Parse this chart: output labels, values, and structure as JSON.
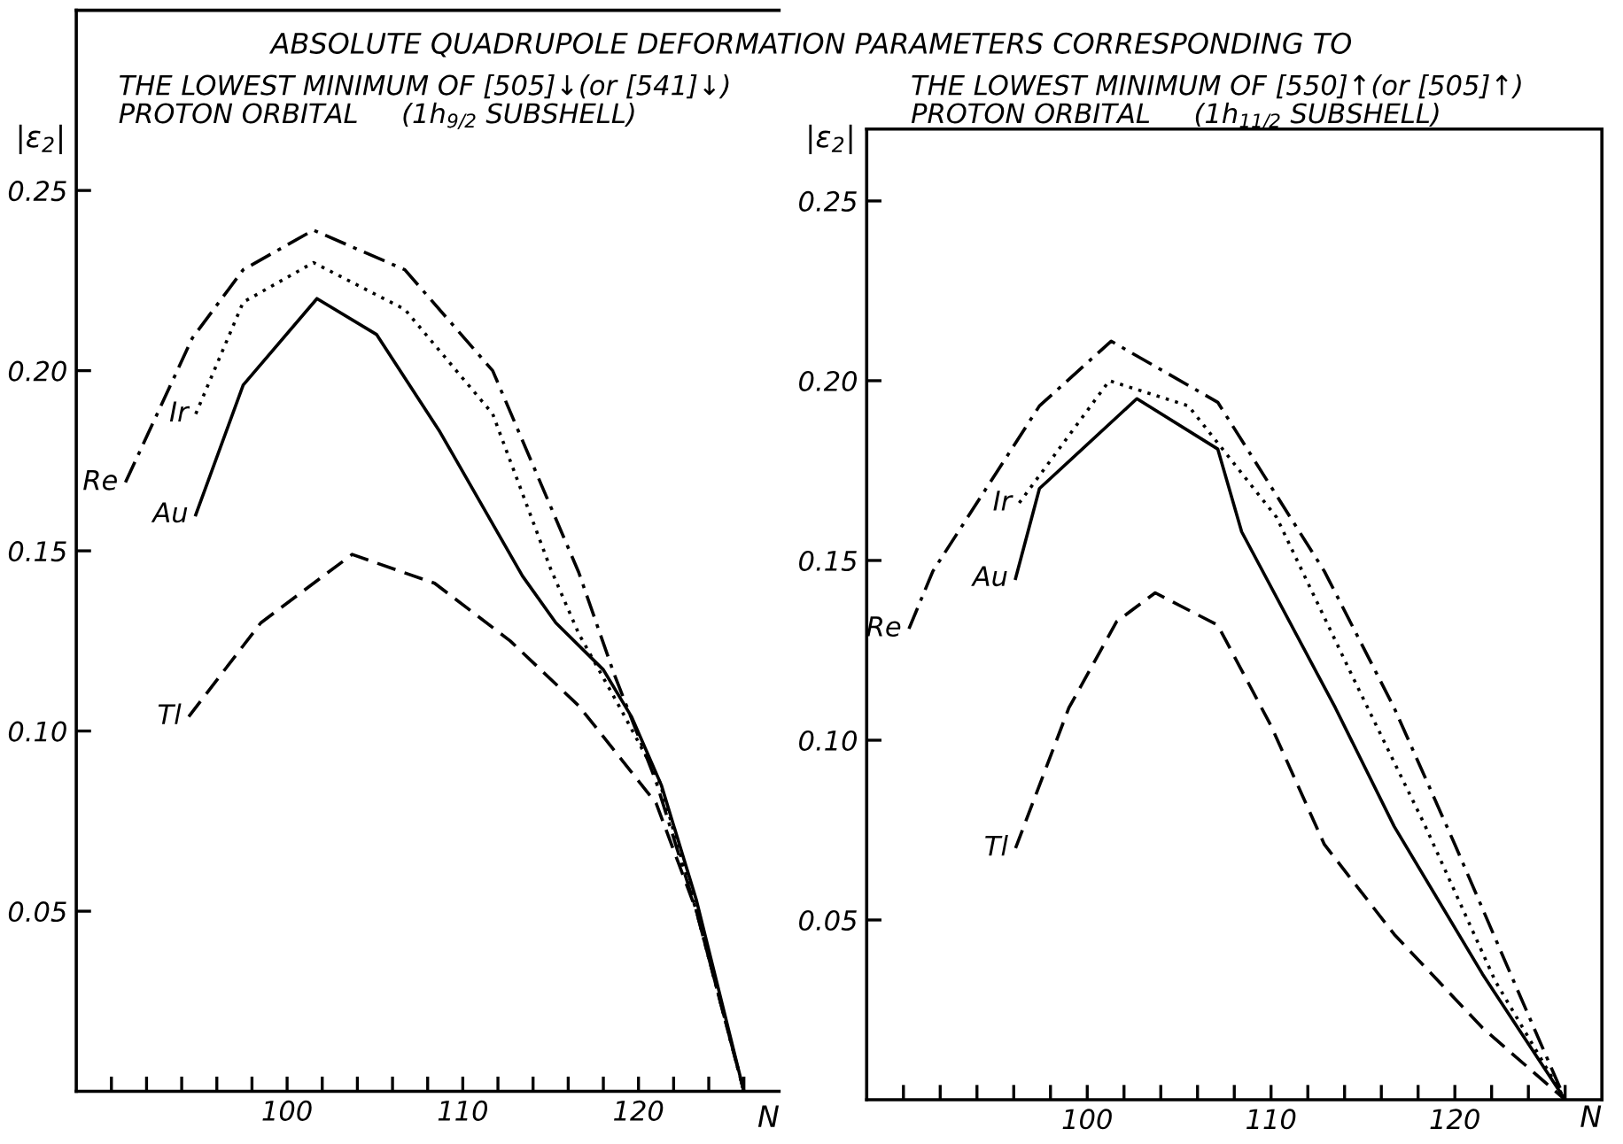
{
  "chart_data": [
    {
      "type": "line",
      "title": "ABSOLUTE QUADRUPOLE DEFORMATION PARAMETERS CORRESPONDING TO",
      "subtitle": "THE LOWEST MINIMUM OF [505]↓(or [541]↓)\nPROTON ORBITAL     (1h$_{9/2}$ SUBSHELL)",
      "xlabel": "N",
      "ylabel": "|ε$_{2}$|",
      "xlim": [
        88,
        128
      ],
      "ylim": [
        0,
        0.3
      ],
      "xticks": [
        {
          "value": 90,
          "label": null
        },
        {
          "value": 92,
          "label": null
        },
        {
          "value": 94,
          "label": null
        },
        {
          "value": 96,
          "label": null
        },
        {
          "value": 98,
          "label": null
        },
        100,
        {
          "value": 102,
          "label": null
        },
        {
          "value": 104,
          "label": null
        },
        {
          "value": 106,
          "label": null
        },
        {
          "value": 108,
          "label": null
        },
        110,
        {
          "value": 112,
          "label": null
        },
        {
          "value": 114,
          "label": null
        },
        {
          "value": 116,
          "label": null
        },
        {
          "value": 118,
          "label": null
        },
        120,
        {
          "value": 122,
          "label": null
        },
        {
          "value": 124,
          "label": null
        },
        {
          "value": 126,
          "label": null
        }
      ],
      "yticks": [
        {
          "value": 0.05,
          "label": "0.05"
        },
        {
          "value": 0.1,
          "label": "0.10"
        },
        {
          "value": 0.15,
          "label": "0.15"
        },
        {
          "value": 0.2,
          "label": "0.20"
        },
        {
          "value": 0.25,
          "label": "0.25"
        }
      ],
      "grid": false,
      "legend": false,
      "marker": "none",
      "series": [
        {
          "name": "Re",
          "color": "#000000",
          "line_style": "dashdot",
          "x": [
            90.8,
            94.6,
            97.5,
            101.5,
            106.7,
            111.7,
            116.6,
            118.6,
            121,
            123.3,
            126
          ],
          "values": [
            0.169,
            0.209,
            0.228,
            0.239,
            0.228,
            0.2,
            0.144,
            0.116,
            0.086,
            0.05,
            0.0
          ]
        },
        {
          "name": "Ir",
          "color": "#000000",
          "line_style": "dotted",
          "x": [
            94.8,
            97.5,
            101.5,
            106.7,
            111.7,
            115,
            116.6,
            119,
            121.2,
            123.3,
            126
          ],
          "values": [
            0.188,
            0.219,
            0.23,
            0.217,
            0.188,
            0.145,
            0.127,
            0.106,
            0.086,
            0.05,
            0.0
          ]
        },
        {
          "name": "Au",
          "color": "#000000",
          "line_style": "solid",
          "x": [
            94.8,
            97.5,
            101.7,
            105.1,
            108.7,
            113.4,
            115.3,
            118,
            119.6,
            121.3,
            123.3,
            126
          ],
          "values": [
            0.16,
            0.196,
            0.22,
            0.21,
            0.183,
            0.143,
            0.13,
            0.117,
            0.104,
            0.085,
            0.053,
            0.0
          ]
        },
        {
          "name": "Tl",
          "color": "#000000",
          "line_style": "dashed",
          "x": [
            94.4,
            98.5,
            103.7,
            108.4,
            112.7,
            116.6,
            121,
            123.3,
            126
          ],
          "values": [
            0.104,
            0.13,
            0.149,
            0.141,
            0.125,
            0.107,
            0.08,
            0.05,
            0.0
          ]
        }
      ]
    },
    {
      "type": "line",
      "subtitle": "THE LOWEST MINIMUM OF [550]↑(or [505]↑)\nPROTON ORBITAL     (1h$_{11/2}$ SUBSHELL)",
      "xlabel": "N",
      "ylabel": "|ε$_{2}$|",
      "xlim": [
        88,
        128
      ],
      "ylim": [
        0,
        0.27
      ],
      "xticks": [
        {
          "value": 90,
          "label": null
        },
        {
          "value": 92,
          "label": null
        },
        {
          "value": 94,
          "label": null
        },
        {
          "value": 96,
          "label": null
        },
        {
          "value": 98,
          "label": null
        },
        100,
        {
          "value": 102,
          "label": null
        },
        {
          "value": 104,
          "label": null
        },
        {
          "value": 106,
          "label": null
        },
        {
          "value": 108,
          "label": null
        },
        110,
        {
          "value": 112,
          "label": null
        },
        {
          "value": 114,
          "label": null
        },
        {
          "value": 116,
          "label": null
        },
        {
          "value": 118,
          "label": null
        },
        120,
        {
          "value": 122,
          "label": null
        },
        {
          "value": 124,
          "label": null
        },
        {
          "value": 126,
          "label": null
        }
      ],
      "yticks": [
        {
          "value": 0.05,
          "label": "0.05"
        },
        {
          "value": 0.1,
          "label": "0.10"
        },
        {
          "value": 0.15,
          "label": "0.15"
        },
        {
          "value": 0.2,
          "label": "0.20"
        },
        {
          "value": 0.25,
          "label": "0.25"
        }
      ],
      "grid": false,
      "legend": false,
      "marker": "none",
      "series": [
        {
          "name": "Re",
          "color": "#000000",
          "line_style": "dashdot",
          "x": [
            90.3,
            91.6,
            97.4,
            101.3,
            107.1,
            112.9,
            116.7,
            120,
            123.2,
            126
          ],
          "values": [
            0.131,
            0.147,
            0.193,
            0.211,
            0.194,
            0.147,
            0.109,
            0.071,
            0.033,
            0.0
          ]
        },
        {
          "name": "Ir",
          "color": "#000000",
          "line_style": "dotted",
          "x": [
            96.3,
            101.2,
            105.5,
            110.3,
            114.5,
            118.4,
            122.2,
            126
          ],
          "values": [
            0.166,
            0.2,
            0.193,
            0.162,
            0.117,
            0.076,
            0.033,
            0.0
          ]
        },
        {
          "name": "Au",
          "color": "#000000",
          "line_style": "solid",
          "x": [
            96.1,
            97.4,
            102.7,
            107.1,
            108.4,
            113.5,
            116.7,
            121.5,
            126
          ],
          "values": [
            0.145,
            0.17,
            0.195,
            0.181,
            0.158,
            0.109,
            0.076,
            0.035,
            0.0
          ]
        },
        {
          "name": "Tl",
          "color": "#000000",
          "line_style": "dashed",
          "x": [
            96.1,
            99,
            101.6,
            103.7,
            107.1,
            110,
            112.9,
            116.7,
            121.5,
            126
          ],
          "values": [
            0.07,
            0.109,
            0.133,
            0.141,
            0.132,
            0.104,
            0.071,
            0.046,
            0.02,
            0.0
          ]
        }
      ]
    }
  ]
}
